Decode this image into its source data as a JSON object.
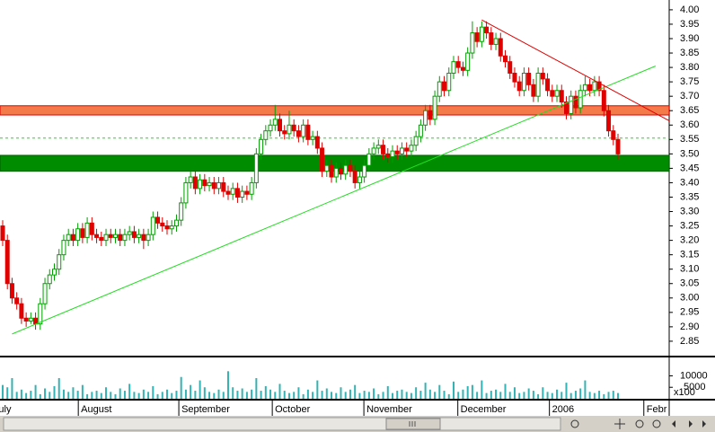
{
  "chart_data": {
    "type": "candlestick",
    "up_color": "#00a000",
    "down_color": "#e00000",
    "xlim": [
      -0.57,
      141.9
    ],
    "ylim": [
      2.803,
      4.034
    ],
    "yticks": [
      {
        "value": 4,
        "label": "4.00"
      },
      3.95,
      {
        "value": 3.9,
        "label": "3.90"
      },
      3.85,
      {
        "value": 3.8,
        "label": "3.80"
      },
      3.75,
      {
        "value": 3.7,
        "label": "3.70"
      },
      3.65,
      {
        "value": 3.6,
        "label": "3.60"
      },
      3.55,
      {
        "value": 3.5,
        "label": "3.50"
      },
      3.45,
      {
        "value": 3.4,
        "label": "3.40"
      },
      3.35,
      {
        "value": 3.3,
        "label": "3.30"
      },
      3.25,
      {
        "value": 3.2,
        "label": "3.20"
      },
      3.15,
      {
        "value": 3.1,
        "label": "3.10"
      },
      3.05,
      {
        "value": 3,
        "label": "3.00"
      },
      2.95,
      {
        "value": 2.9,
        "label": "2.90"
      },
      2.85
    ],
    "xticks": [
      {
        "value": -2.5,
        "label": "July"
      },
      {
        "value": 16.1,
        "label": "August"
      },
      {
        "value": 37.5,
        "label": "September"
      },
      {
        "value": 57.4,
        "label": "October"
      },
      {
        "value": 76.9,
        "label": "November"
      },
      {
        "value": 96.9,
        "label": "December"
      },
      {
        "value": 116.4,
        "label": "2006"
      },
      {
        "value": 136.5,
        "label": "Febr"
      }
    ],
    "candles": [
      [
        3.25,
        3.27,
        3.18,
        3.2
      ],
      [
        3.2,
        3.22,
        3.03,
        3.05
      ],
      [
        3.05,
        3.07,
        2.98,
        3.0
      ],
      [
        3.0,
        3.02,
        2.96,
        2.98
      ],
      [
        2.98,
        3.0,
        2.91,
        2.93
      ],
      [
        2.93,
        2.95,
        2.9,
        2.92
      ],
      [
        2.92,
        2.95,
        2.91,
        2.93
      ],
      [
        2.93,
        2.95,
        2.89,
        2.91
      ],
      [
        2.91,
        3.0,
        2.89,
        2.98
      ],
      [
        2.98,
        3.07,
        2.96,
        3.05
      ],
      [
        3.05,
        3.1,
        3.03,
        3.08
      ],
      [
        3.08,
        3.12,
        3.06,
        3.1
      ],
      [
        3.1,
        3.17,
        3.08,
        3.15
      ],
      [
        3.15,
        3.22,
        3.13,
        3.2
      ],
      [
        3.2,
        3.24,
        3.18,
        3.22
      ],
      [
        3.22,
        3.24,
        3.18,
        3.2
      ],
      [
        3.2,
        3.26,
        3.18,
        3.24
      ],
      [
        3.24,
        3.26,
        3.19,
        3.21
      ],
      [
        3.21,
        3.28,
        3.19,
        3.26
      ],
      [
        3.26,
        3.28,
        3.2,
        3.22
      ],
      [
        3.22,
        3.24,
        3.19,
        3.21
      ],
      [
        3.21,
        3.23,
        3.18,
        3.2
      ],
      [
        3.2,
        3.24,
        3.18,
        3.22
      ],
      [
        3.22,
        3.24,
        3.19,
        3.21
      ],
      [
        3.21,
        3.24,
        3.19,
        3.22
      ],
      [
        3.22,
        3.24,
        3.18,
        3.2
      ],
      [
        3.2,
        3.24,
        3.18,
        3.22
      ],
      [
        3.22,
        3.25,
        3.2,
        3.23
      ],
      [
        3.23,
        3.25,
        3.19,
        3.21
      ],
      [
        3.21,
        3.24,
        3.19,
        3.22
      ],
      [
        3.22,
        3.24,
        3.17,
        3.2
      ],
      [
        3.2,
        3.24,
        3.18,
        3.22
      ],
      [
        3.22,
        3.3,
        3.2,
        3.28
      ],
      [
        3.28,
        3.3,
        3.24,
        3.26
      ],
      [
        3.26,
        3.28,
        3.23,
        3.25
      ],
      [
        3.25,
        3.27,
        3.22,
        3.24
      ],
      [
        3.24,
        3.27,
        3.22,
        3.25
      ],
      [
        3.25,
        3.29,
        3.23,
        3.27
      ],
      [
        3.27,
        3.35,
        3.25,
        3.33
      ],
      [
        3.33,
        3.42,
        3.31,
        3.4
      ],
      [
        3.4,
        3.44,
        3.38,
        3.42
      ],
      [
        3.42,
        3.44,
        3.36,
        3.38
      ],
      [
        3.38,
        3.43,
        3.36,
        3.41
      ],
      [
        3.41,
        3.43,
        3.37,
        3.39
      ],
      [
        3.39,
        3.42,
        3.37,
        3.4
      ],
      [
        3.4,
        3.42,
        3.36,
        3.38
      ],
      [
        3.38,
        3.42,
        3.36,
        3.4
      ],
      [
        3.4,
        3.42,
        3.35,
        3.37
      ],
      [
        3.37,
        3.39,
        3.34,
        3.36
      ],
      [
        3.36,
        3.4,
        3.34,
        3.38
      ],
      [
        3.38,
        3.4,
        3.33,
        3.35
      ],
      [
        3.35,
        3.39,
        3.33,
        3.37
      ],
      [
        3.37,
        3.39,
        3.34,
        3.36
      ],
      [
        3.36,
        3.42,
        3.34,
        3.4
      ],
      [
        3.4,
        3.52,
        3.38,
        3.5
      ],
      [
        3.5,
        3.57,
        3.48,
        3.55
      ],
      [
        3.55,
        3.6,
        3.53,
        3.58
      ],
      [
        3.58,
        3.62,
        3.56,
        3.6
      ],
      [
        3.6,
        3.67,
        3.58,
        3.62
      ],
      [
        3.62,
        3.64,
        3.56,
        3.58
      ],
      [
        3.58,
        3.6,
        3.55,
        3.57
      ],
      [
        3.57,
        3.65,
        3.55,
        3.6
      ],
      [
        3.6,
        3.62,
        3.56,
        3.58
      ],
      [
        3.58,
        3.6,
        3.54,
        3.56
      ],
      [
        3.56,
        3.62,
        3.54,
        3.6
      ],
      [
        3.6,
        3.62,
        3.53,
        3.55
      ],
      [
        3.55,
        3.58,
        3.53,
        3.56
      ],
      [
        3.56,
        3.58,
        3.5,
        3.52
      ],
      [
        3.52,
        3.54,
        3.42,
        3.44
      ],
      [
        3.44,
        3.48,
        3.42,
        3.46
      ],
      [
        3.46,
        3.48,
        3.4,
        3.42
      ],
      [
        3.42,
        3.47,
        3.4,
        3.45
      ],
      [
        3.45,
        3.47,
        3.41,
        3.43
      ],
      [
        3.43,
        3.48,
        3.41,
        3.46
      ],
      [
        3.46,
        3.48,
        3.42,
        3.44
      ],
      [
        3.44,
        3.46,
        3.38,
        3.4
      ],
      [
        3.4,
        3.44,
        3.38,
        3.42
      ],
      [
        3.42,
        3.48,
        3.4,
        3.46
      ],
      [
        3.46,
        3.52,
        3.44,
        3.5
      ],
      [
        3.5,
        3.54,
        3.48,
        3.52
      ],
      [
        3.52,
        3.55,
        3.5,
        3.53
      ],
      [
        3.53,
        3.55,
        3.48,
        3.5
      ],
      [
        3.5,
        3.52,
        3.47,
        3.49
      ],
      [
        3.49,
        3.53,
        3.47,
        3.51
      ],
      [
        3.51,
        3.53,
        3.48,
        3.5
      ],
      [
        3.5,
        3.54,
        3.48,
        3.52
      ],
      [
        3.52,
        3.54,
        3.49,
        3.51
      ],
      [
        3.51,
        3.55,
        3.49,
        3.53
      ],
      [
        3.53,
        3.58,
        3.51,
        3.56
      ],
      [
        3.56,
        3.62,
        3.54,
        3.6
      ],
      [
        3.6,
        3.67,
        3.58,
        3.65
      ],
      [
        3.65,
        3.67,
        3.6,
        3.62
      ],
      [
        3.62,
        3.72,
        3.6,
        3.7
      ],
      [
        3.7,
        3.77,
        3.68,
        3.75
      ],
      [
        3.75,
        3.77,
        3.7,
        3.72
      ],
      [
        3.72,
        3.8,
        3.7,
        3.78
      ],
      [
        3.78,
        3.84,
        3.76,
        3.82
      ],
      [
        3.82,
        3.84,
        3.78,
        3.8
      ],
      [
        3.8,
        3.82,
        3.77,
        3.79
      ],
      [
        3.79,
        3.87,
        3.77,
        3.85
      ],
      [
        3.85,
        3.96,
        3.83,
        3.92
      ],
      [
        3.92,
        3.94,
        3.87,
        3.89
      ],
      [
        3.89,
        3.96,
        3.87,
        3.94
      ],
      [
        3.94,
        3.96,
        3.9,
        3.92
      ],
      [
        3.92,
        3.94,
        3.86,
        3.88
      ],
      [
        3.88,
        3.92,
        3.86,
        3.9
      ],
      [
        3.9,
        3.92,
        3.82,
        3.84
      ],
      [
        3.84,
        3.86,
        3.8,
        3.82
      ],
      [
        3.82,
        3.84,
        3.76,
        3.78
      ],
      [
        3.78,
        3.8,
        3.73,
        3.75
      ],
      [
        3.75,
        3.77,
        3.7,
        3.72
      ],
      [
        3.72,
        3.8,
        3.7,
        3.78
      ],
      [
        3.78,
        3.8,
        3.72,
        3.74
      ],
      [
        3.74,
        3.76,
        3.68,
        3.7
      ],
      [
        3.7,
        3.8,
        3.68,
        3.78
      ],
      [
        3.78,
        3.8,
        3.74,
        3.76
      ],
      [
        3.76,
        3.78,
        3.7,
        3.72
      ],
      [
        3.72,
        3.74,
        3.68,
        3.7
      ],
      [
        3.7,
        3.74,
        3.68,
        3.72
      ],
      [
        3.72,
        3.74,
        3.66,
        3.68
      ],
      [
        3.68,
        3.7,
        3.62,
        3.64
      ],
      [
        3.64,
        3.72,
        3.62,
        3.7
      ],
      [
        3.7,
        3.72,
        3.64,
        3.66
      ],
      [
        3.66,
        3.74,
        3.64,
        3.72
      ],
      [
        3.72,
        3.77,
        3.7,
        3.74
      ],
      [
        3.74,
        3.76,
        3.7,
        3.72
      ],
      [
        3.72,
        3.77,
        3.7,
        3.75
      ],
      [
        3.75,
        3.77,
        3.7,
        3.72
      ],
      [
        3.72,
        3.74,
        3.63,
        3.65
      ],
      [
        3.65,
        3.67,
        3.56,
        3.58
      ],
      [
        3.58,
        3.6,
        3.53,
        3.55
      ],
      [
        3.55,
        3.57,
        3.48,
        3.5
      ]
    ],
    "bands": [
      {
        "from": 3.635,
        "to": 3.667,
        "color": "#f47a4a",
        "edge": "#e00000"
      },
      {
        "from": 3.44,
        "to": 3.495,
        "color": "#008c00",
        "edge": "#006000"
      }
    ],
    "hlines": [
      {
        "value": 3.555,
        "color": "#33cc33"
      }
    ],
    "trendlines": [
      {
        "x": [
          2,
          139
        ],
        "y": [
          2.875,
          3.805
        ],
        "color": "#22dd22"
      },
      {
        "x": [
          102,
          141.9
        ],
        "y": [
          3.965,
          3.615
        ],
        "color": "#e00000"
      }
    ],
    "volume": {
      "color": "#33b3b3",
      "ylim": [
        0,
        18000
      ],
      "yticks": [
        10000,
        5000
      ],
      "unit_label": "x100",
      "values": [
        6000,
        5000,
        9000,
        3000,
        4000,
        2500,
        3500,
        6000,
        2000,
        4500,
        3000,
        5500,
        9000,
        4000,
        3000,
        5000,
        3500,
        6000,
        2000,
        3000,
        3500,
        2500,
        5000,
        3000,
        2000,
        4500,
        3500,
        6500,
        3000,
        2500,
        4000,
        3000,
        5500,
        2000,
        3000,
        4000,
        2500,
        3500,
        9500,
        4000,
        6000,
        3500,
        8000,
        5000,
        3000,
        2500,
        4000,
        3000,
        12000,
        5000,
        3500,
        4500,
        3000,
        4000,
        9000,
        3500,
        5500,
        4000,
        3000,
        6500,
        3500,
        2500,
        3000,
        5000,
        2000,
        4000,
        3000,
        8000,
        3500,
        4500,
        3000,
        2500,
        5000,
        3000,
        4000,
        6000,
        2500,
        3500,
        3000,
        4500,
        2000,
        3000,
        5500,
        2500,
        3500,
        4000,
        3000,
        2500,
        5000,
        3500,
        7000,
        4000,
        3000,
        6000,
        3500,
        2000,
        7500,
        3000,
        4000,
        5500,
        6000,
        3000,
        8000,
        2500,
        3500,
        4000,
        3000,
        6500,
        3000,
        5000,
        2500,
        3000,
        4500,
        3500,
        2000,
        5000,
        3000,
        2500,
        4000,
        3000,
        7000,
        2500,
        3500,
        4500,
        8000,
        3000,
        2500,
        3500,
        2000,
        3000,
        3500,
        2500
      ]
    }
  }
}
